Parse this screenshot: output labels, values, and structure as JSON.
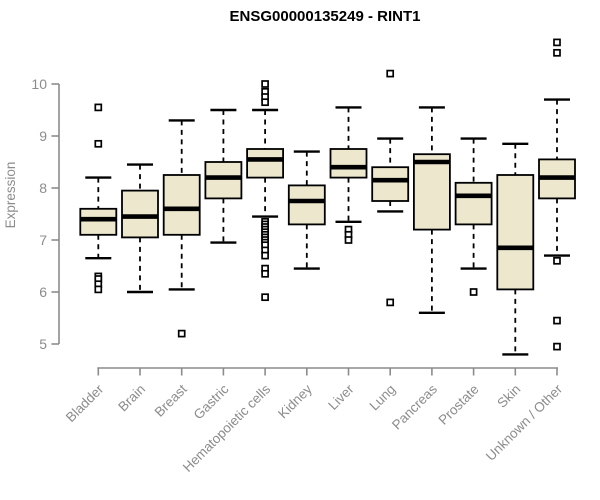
{
  "chart_data": {
    "type": "boxplot",
    "title": "ENSG00000135249 - RINT1",
    "ylabel": "Expression",
    "xlabel": "",
    "ylim": [
      5,
      10
    ],
    "yticks": [
      5,
      6,
      7,
      8,
      9,
      10
    ],
    "grid": false,
    "legend": "none",
    "colors": {
      "box_fill": "#EDE8CD",
      "box_stroke": "#000000",
      "axis": "#8C8C8C",
      "tick_label": "#8C8C8C",
      "title": "#000000",
      "background": "#FFFFFF"
    },
    "categories": [
      "Bladder",
      "Brain",
      "Breast",
      "Gastric",
      "Hematopoietic cells",
      "Kidney",
      "Liver",
      "Lung",
      "Pancreas",
      "Prostate",
      "Skin",
      "Unknown / Other"
    ],
    "boxes": [
      {
        "category": "Bladder",
        "whisker_low": 6.65,
        "q1": 7.1,
        "median": 7.4,
        "q3": 7.6,
        "whisker_high": 8.2,
        "outliers": [
          9.55,
          8.85,
          6.3,
          6.25,
          6.15,
          6.05
        ]
      },
      {
        "category": "Brain",
        "whisker_low": 6.0,
        "q1": 7.05,
        "median": 7.45,
        "q3": 7.95,
        "whisker_high": 8.45,
        "outliers": []
      },
      {
        "category": "Breast",
        "whisker_low": 6.05,
        "q1": 7.1,
        "median": 7.6,
        "q3": 8.25,
        "whisker_high": 9.3,
        "outliers": [
          5.2
        ]
      },
      {
        "category": "Gastric",
        "whisker_low": 6.95,
        "q1": 7.8,
        "median": 8.2,
        "q3": 8.5,
        "whisker_high": 9.5,
        "outliers": []
      },
      {
        "category": "Hematopoietic cells",
        "whisker_low": 7.45,
        "q1": 8.2,
        "median": 8.55,
        "q3": 8.75,
        "whisker_high": 9.5,
        "outliers": [
          10.0,
          9.85,
          9.75,
          9.65,
          7.35,
          7.3,
          7.25,
          7.2,
          7.15,
          7.1,
          7.05,
          7.0,
          6.95,
          6.9,
          6.8,
          6.7,
          6.45,
          6.35,
          5.9
        ]
      },
      {
        "category": "Kidney",
        "whisker_low": 6.45,
        "q1": 7.3,
        "median": 7.75,
        "q3": 8.05,
        "whisker_high": 8.7,
        "outliers": []
      },
      {
        "category": "Liver",
        "whisker_low": 7.35,
        "q1": 8.2,
        "median": 8.4,
        "q3": 8.75,
        "whisker_high": 9.55,
        "outliers": [
          7.2,
          7.1,
          7.0
        ]
      },
      {
        "category": "Lung",
        "whisker_low": 7.55,
        "q1": 7.75,
        "median": 8.15,
        "q3": 8.4,
        "whisker_high": 8.95,
        "outliers": [
          10.2,
          5.8
        ]
      },
      {
        "category": "Pancreas",
        "whisker_low": 5.6,
        "q1": 7.2,
        "median": 8.5,
        "q3": 8.65,
        "whisker_high": 9.55,
        "outliers": []
      },
      {
        "category": "Prostate",
        "whisker_low": 6.45,
        "q1": 7.3,
        "median": 7.85,
        "q3": 8.1,
        "whisker_high": 8.95,
        "outliers": [
          6.0
        ]
      },
      {
        "category": "Skin",
        "whisker_low": 4.8,
        "q1": 6.05,
        "median": 6.85,
        "q3": 8.25,
        "whisker_high": 8.85,
        "outliers": []
      },
      {
        "category": "Unknown / Other",
        "whisker_low": 6.7,
        "q1": 7.8,
        "median": 8.2,
        "q3": 8.55,
        "whisker_high": 9.7,
        "outliers": [
          10.8,
          10.6,
          6.6,
          5.45,
          4.95
        ]
      }
    ]
  }
}
